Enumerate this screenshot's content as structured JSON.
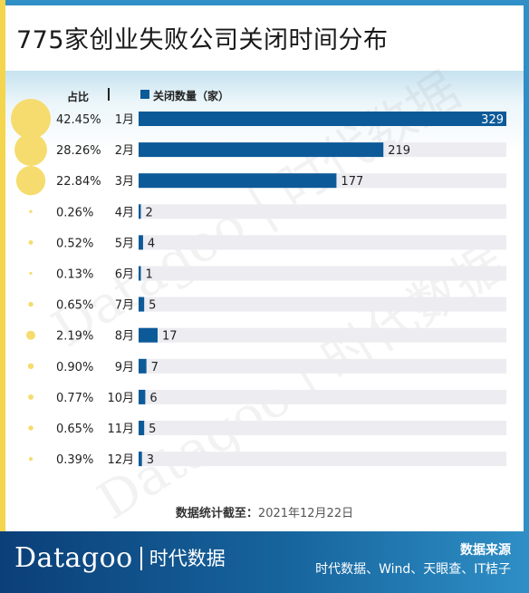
{
  "title": "775家创业失败公司关闭时间分布",
  "header": {
    "share_label": "占比",
    "legend_label": "关闭数量（家）"
  },
  "colors": {
    "bar": "#0d5a98",
    "track": "#ececf1",
    "bubble": "#f6dc6e",
    "header_frame": "#2f8fc6",
    "accent_yellow": "#f3d54e"
  },
  "chart_data": {
    "type": "bar",
    "orientation": "horizontal",
    "categories": [
      "1月",
      "2月",
      "3月",
      "4月",
      "5月",
      "6月",
      "7月",
      "8月",
      "9月",
      "10月",
      "11月",
      "12月"
    ],
    "series": [
      {
        "name": "关闭数量（家）",
        "values": [
          329,
          219,
          177,
          2,
          4,
          1,
          5,
          17,
          7,
          6,
          5,
          3
        ]
      },
      {
        "name": "占比",
        "values": [
          42.45,
          28.26,
          22.84,
          0.26,
          0.52,
          0.13,
          0.65,
          2.19,
          0.9,
          0.77,
          0.65,
          0.39
        ],
        "labels": [
          "42.45%",
          "28.26%",
          "22.84%",
          "0.26%",
          "0.52%",
          "0.13%",
          "0.65%",
          "2.19%",
          "0.90%",
          "0.77%",
          "0.65%",
          "0.39%"
        ]
      }
    ],
    "xlim": [
      0,
      329
    ],
    "grid": false,
    "legend": "top"
  },
  "note": {
    "label": "数据统计截至：",
    "date": "2021年12月22日"
  },
  "footer": {
    "brand_en": "Datagoo",
    "brand_cn": "时代数据",
    "source_label": "数据来源",
    "source_text": "时代数据、Wind、天眼查、IT桔子"
  },
  "watermarks": [
    "Datagoo",
    "时代数据"
  ]
}
